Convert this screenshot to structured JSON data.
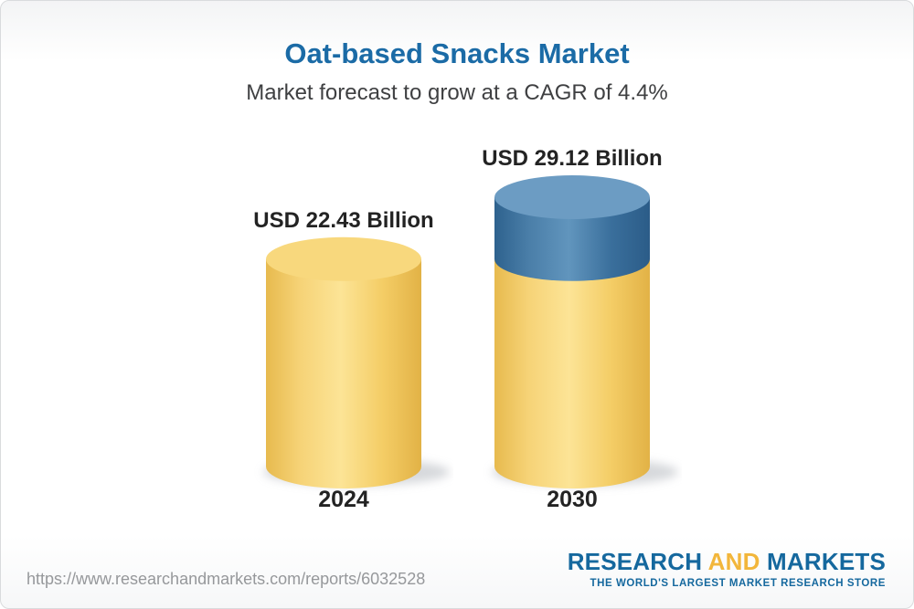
{
  "page": {
    "footer_url": "https://www.researchandmarkets.com/reports/6032528",
    "logo": {
      "word1": "RESEARCH",
      "word2": "AND",
      "word3": "MARKETS",
      "tagline": "THE WORLD'S LARGEST MARKET RESEARCH STORE"
    }
  },
  "chart_data": {
    "type": "bar",
    "title": "Oat-based Snacks Market",
    "subtitle": "Market forecast to grow at a CAGR of 4.4%",
    "cagr_percent": 4.4,
    "unit": "USD Billion",
    "categories": [
      "2024",
      "2030"
    ],
    "values": [
      22.43,
      29.12
    ],
    "ylim": [
      0,
      29.12
    ],
    "grid": false,
    "legend": "none",
    "bars": [
      {
        "year": "2024",
        "label": "USD 22.43 Billion",
        "value": 22.43,
        "segments": [
          {
            "value": 22.43,
            "color": "yellow"
          }
        ]
      },
      {
        "year": "2030",
        "label": "USD 29.12 Billion",
        "value": 29.12,
        "segments": [
          {
            "value": 22.43,
            "color": "yellow"
          },
          {
            "value": 6.69,
            "color": "blue"
          }
        ]
      }
    ],
    "colors": {
      "yellow": {
        "body": [
          "#e7ba4e",
          "#f6d377",
          "#fce496",
          "#f4cd66",
          "#e2b246"
        ],
        "top": "#f8d87d"
      },
      "blue": {
        "body": [
          "#2e628e",
          "#4a7ea8",
          "#6195bd",
          "#3a6f9c",
          "#2b5c88"
        ],
        "top": "#6c9cc3"
      },
      "shadow": "#c9ccd0",
      "title_blue": "#1b6ba6",
      "logo_blue": "#15689e",
      "logo_yellow": "#f2b63b"
    }
  }
}
